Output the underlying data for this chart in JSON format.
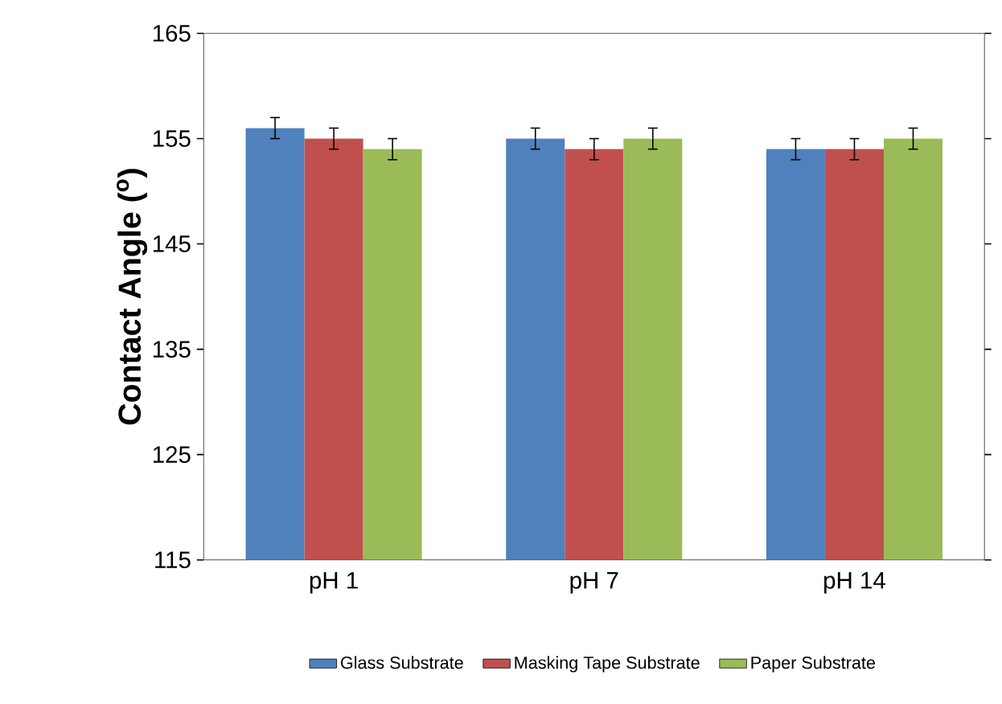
{
  "chart_data": {
    "type": "bar",
    "ylabel": "Contact Angle ($^{o}$)",
    "categories": [
      "pH 1",
      "pH 7",
      "pH 14"
    ],
    "series": [
      {
        "name": "Glass Substrate",
        "color": "#4f81bd",
        "values": [
          156,
          155,
          154
        ],
        "errors": [
          1,
          1,
          1
        ]
      },
      {
        "name": "Masking Tape Substrate",
        "color": "#c0504d",
        "values": [
          155,
          154,
          154
        ],
        "errors": [
          1,
          1,
          1
        ]
      },
      {
        "name": "Paper Substrate",
        "color": "#9bbb59",
        "values": [
          154,
          155,
          155
        ],
        "errors": [
          1,
          1,
          1
        ]
      }
    ],
    "ylim": [
      115,
      165
    ],
    "yticks": [
      115,
      125,
      135,
      145,
      155,
      165
    ],
    "legend": "bottom",
    "grid": false
  }
}
